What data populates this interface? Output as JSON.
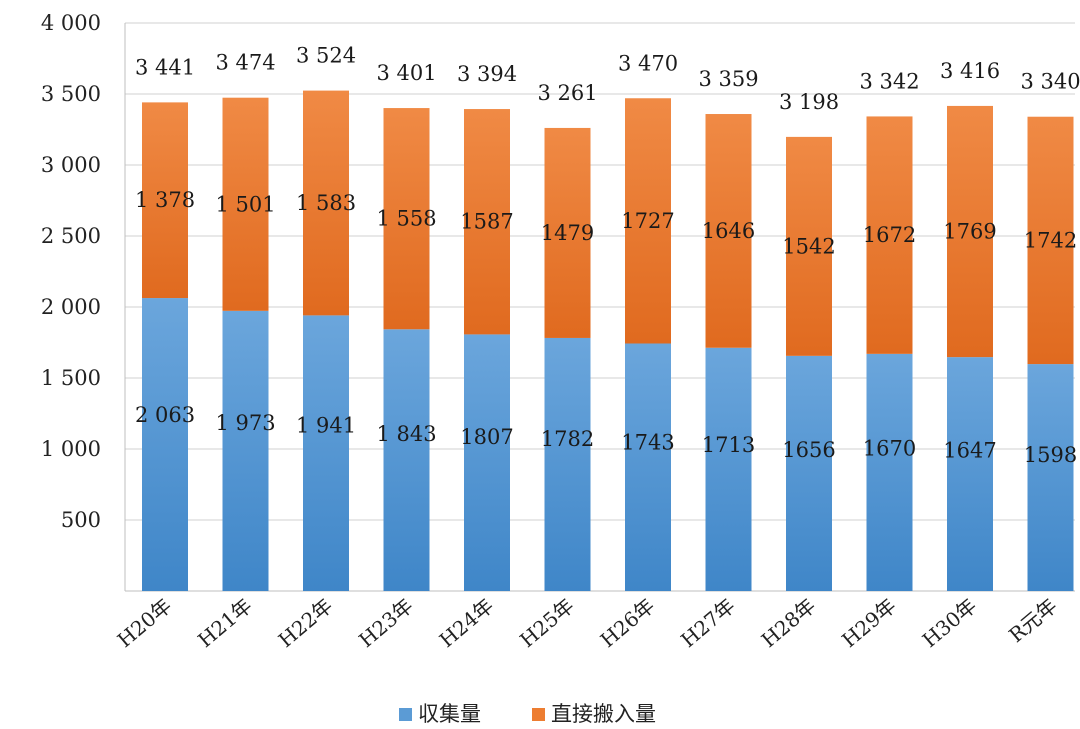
{
  "chart_data": {
    "type": "bar",
    "stacked": true,
    "categories": [
      "H20年",
      "H21年",
      "H22年",
      "H23年",
      "H24年",
      "H25年",
      "H26年",
      "H27年",
      "H28年",
      "H29年",
      "H30年",
      "R元年"
    ],
    "series": [
      {
        "name": "収集量",
        "color": "#5b9bd5",
        "values": [
          2063,
          1973,
          1941,
          1843,
          1807,
          1782,
          1743,
          1713,
          1656,
          1670,
          1647,
          1598
        ],
        "labels": [
          "2 063",
          "1 973",
          "1 941",
          "1 843",
          "1807",
          "1782",
          "1743",
          "1713",
          "1656",
          "1670",
          "1647",
          "1598"
        ]
      },
      {
        "name": "直接搬入量",
        "color": "#ed7d31",
        "values": [
          1378,
          1501,
          1583,
          1558,
          1587,
          1479,
          1727,
          1646,
          1542,
          1672,
          1769,
          1742
        ],
        "labels": [
          "1 378",
          "1 501",
          "1 583",
          "1 558",
          "1587",
          "1479",
          "1727",
          "1646",
          "1542",
          "1672",
          "1769",
          "1742"
        ]
      }
    ],
    "totals": [
      3441,
      3474,
      3524,
      3401,
      3394,
      3261,
      3470,
      3359,
      3198,
      3342,
      3416,
      3340
    ],
    "total_labels": [
      "3 441",
      "3 474",
      "3 524",
      "3 401",
      "3 394",
      "3 261",
      "3 470",
      "3 359",
      "3 198",
      "3 342",
      "3 416",
      "3 340"
    ],
    "ylim": [
      0,
      4000
    ],
    "yticks": [
      500,
      1000,
      1500,
      2000,
      2500,
      3000,
      3500,
      4000
    ],
    "ytick_labels": [
      "500",
      "1 000",
      "1 500",
      "2 000",
      "2 500",
      "3 000",
      "3 500",
      "4 000"
    ],
    "grid": true,
    "legend_position": "bottom"
  }
}
